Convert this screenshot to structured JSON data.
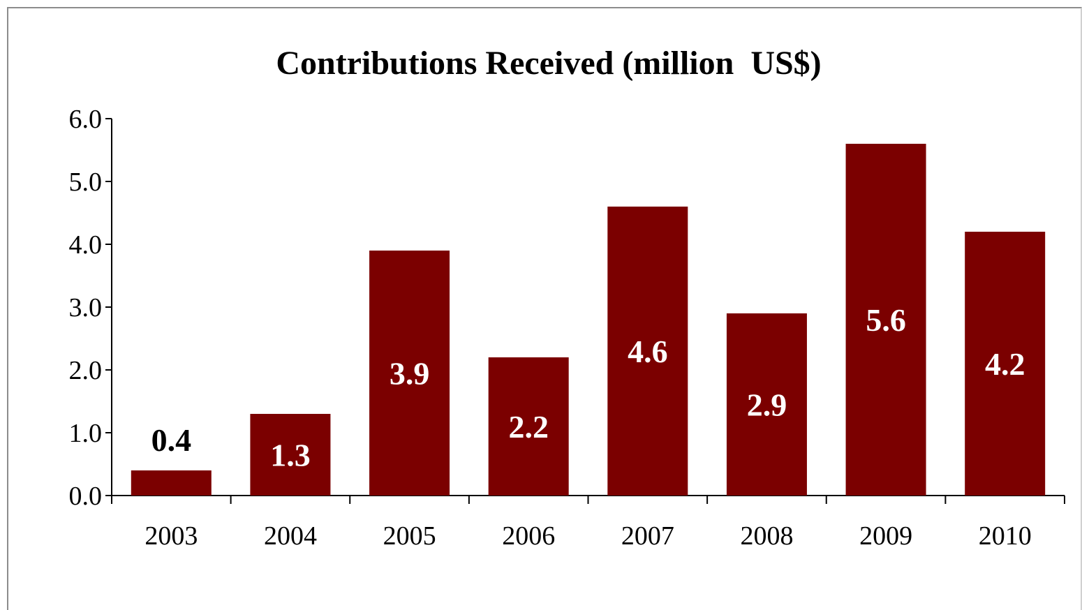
{
  "chart_data": {
    "type": "bar",
    "title": "Contributions Received (million  US$)",
    "categories": [
      "2003",
      "2004",
      "2005",
      "2006",
      "2007",
      "2008",
      "2009",
      "2010"
    ],
    "values": [
      0.4,
      1.3,
      3.9,
      2.2,
      4.6,
      2.9,
      5.6,
      4.2
    ],
    "data_labels": [
      "0.4",
      "1.3",
      "3.9",
      "2.2",
      "4.6",
      "2.9",
      "5.6",
      "4.2"
    ],
    "y_ticks": [
      "0.0",
      "1.0",
      "2.0",
      "3.0",
      "4.0",
      "5.0",
      "6.0"
    ],
    "ylim": [
      0,
      6
    ],
    "xlabel": "",
    "ylabel": "",
    "grid": false,
    "legend": "none",
    "colors": {
      "bar": "#7b0000",
      "label_inside": "#ffffff",
      "label_outside": "#000000",
      "axis": "#000000"
    }
  }
}
